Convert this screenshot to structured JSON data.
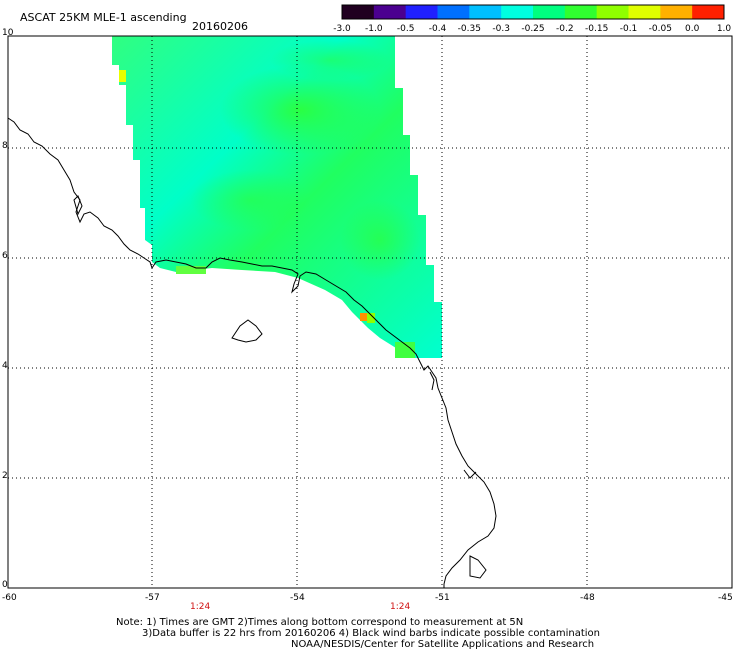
{
  "title": "ASCAT 25KM MLE-1 ascending",
  "date": "20160206",
  "colorbar": {
    "labels": [
      "-3.0",
      "-1.0",
      "-0.5",
      "-0.4",
      "-0.35",
      "-0.3",
      "-0.25",
      "-0.2",
      "-0.15",
      "-0.1",
      "-0.05",
      "0.0",
      "1.0"
    ],
    "colors": [
      "#200020",
      "#4b0090",
      "#2020ff",
      "#0070ff",
      "#00c0ff",
      "#00ffe0",
      "#00ff80",
      "#30ff30",
      "#90ff00",
      "#e0ff00",
      "#ffb000",
      "#ff2000"
    ]
  },
  "x_axis": {
    "labels": [
      "-60",
      "-57",
      "-54",
      "-51",
      "-48",
      "-45"
    ]
  },
  "y_axis": {
    "labels": [
      "0",
      "2",
      "4",
      "6",
      "8",
      "10"
    ]
  },
  "swath_times": [
    "1:24",
    "1:24"
  ],
  "notes": {
    "line1": "Note: 1) Times are GMT 2)Times along bottom correspond to measurement at 5N",
    "line2": "3)Data buffer is 22 hrs from 20160206 4) Black wind barbs indicate possible contamination",
    "line3": "NOAA/NESDIS/Center for Satellite Applications and Research"
  }
}
